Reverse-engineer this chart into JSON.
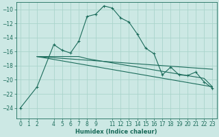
{
  "xlabel": "Humidex (Indice chaleur)",
  "bg_color": "#cce8e4",
  "grid_color": "#aad4cc",
  "line_color": "#1a6b5a",
  "xlim": [
    -0.5,
    23.5
  ],
  "ylim": [
    -25.5,
    -9.0
  ],
  "xtick_vals": [
    0,
    1,
    2,
    4,
    5,
    6,
    7,
    8,
    9,
    11,
    12,
    13,
    14,
    15,
    16,
    17,
    18,
    19,
    20,
    21,
    22,
    23
  ],
  "xtick_labels": [
    "0",
    "1",
    "2",
    "4",
    "5",
    "6",
    "7",
    "8",
    "9",
    "11",
    "12",
    "13",
    "14",
    "15",
    "16",
    "17",
    "18",
    "19",
    "20",
    "21",
    "22",
    "23"
  ],
  "yticks": [
    -24,
    -22,
    -20,
    -18,
    -16,
    -14,
    -12,
    -10
  ],
  "series1_x": [
    0,
    2,
    4,
    5,
    6,
    7,
    8,
    9,
    10,
    11,
    12,
    13,
    14,
    15,
    16,
    17,
    18,
    19,
    20,
    21,
    22,
    23
  ],
  "series1_y": [
    -24.0,
    -21.0,
    -15.0,
    -15.8,
    -16.2,
    -14.5,
    -11.0,
    -10.7,
    -9.5,
    -9.8,
    -11.2,
    -11.8,
    -13.5,
    -15.5,
    -16.3,
    -19.3,
    -18.2,
    -19.3,
    -19.4,
    -18.9,
    -20.3,
    -21.2
  ],
  "series2_x": [
    2,
    4,
    5,
    6,
    7,
    8,
    9,
    10,
    11,
    12,
    13,
    14,
    15,
    16,
    17,
    18,
    19,
    20,
    21,
    22,
    23
  ],
  "series2_y": [
    -16.7,
    -16.7,
    -16.7,
    -16.7,
    -16.7,
    -17.0,
    -17.2,
    -17.4,
    -17.6,
    -17.8,
    -18.0,
    -18.2,
    -18.4,
    -18.6,
    -18.8,
    -19.0,
    -19.2,
    -19.4,
    -19.6,
    -19.8,
    -21.0
  ],
  "line1_x": [
    2,
    23
  ],
  "line1_y": [
    -16.7,
    -21.0
  ],
  "line2_x": [
    2,
    23
  ],
  "line2_y": [
    -16.7,
    -18.5
  ]
}
